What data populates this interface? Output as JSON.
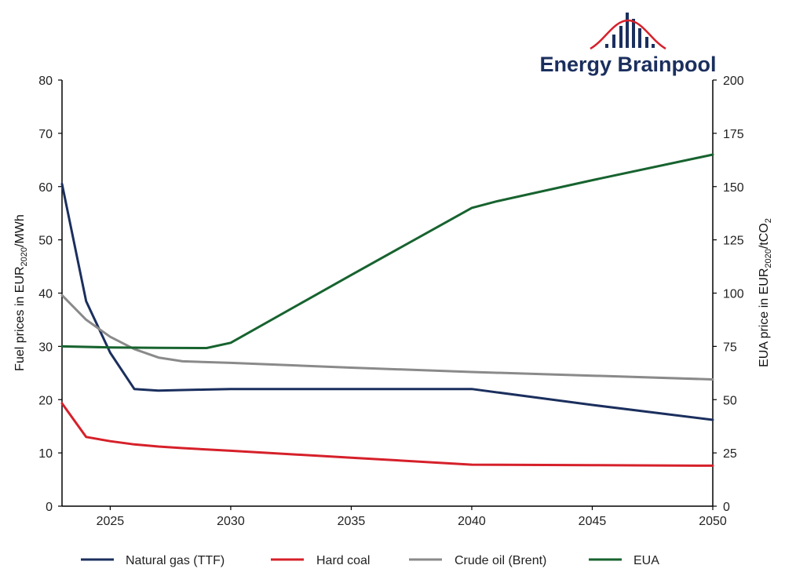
{
  "logo": {
    "text": "Energy Brainpool",
    "colors": {
      "text": "#1b2f5e",
      "arc": "#d6202a"
    }
  },
  "chart_data": {
    "type": "line",
    "xlim": [
      2023,
      2050
    ],
    "x_ticks": [
      2025,
      2030,
      2035,
      2040,
      2045,
      2050
    ],
    "y_left": {
      "label_prefix": "Fuel prices in EUR",
      "label_sub": "2020",
      "label_suffix": "/MWh",
      "lim": [
        0,
        80
      ],
      "ticks": [
        0,
        10,
        20,
        30,
        40,
        50,
        60,
        70,
        80
      ]
    },
    "y_right": {
      "label_prefix": "EUA price in EUR",
      "label_sub": "2020",
      "label_mid": "/tCO",
      "label_sub2": "2",
      "lim": [
        0,
        200
      ],
      "ticks": [
        0,
        25,
        50,
        75,
        100,
        125,
        150,
        175,
        200
      ]
    },
    "grid": false,
    "legend_position": "bottom",
    "series": [
      {
        "name": "Natural gas (TTF)",
        "axis": "left",
        "color": "#1b2f5e",
        "x": [
          2023,
          2024,
          2025,
          2026,
          2027,
          2028,
          2029,
          2030,
          2035,
          2040,
          2045,
          2050
        ],
        "y": [
          60.5,
          38.5,
          28.8,
          22.0,
          21.7,
          21.8,
          21.9,
          22.0,
          22.0,
          22.0,
          19.0,
          16.2
        ]
      },
      {
        "name": "Hard coal",
        "axis": "left",
        "color": "#d6202a",
        "x": [
          2023,
          2024,
          2025,
          2026,
          2027,
          2028,
          2030,
          2035,
          2040,
          2045,
          2050
        ],
        "y": [
          19.3,
          13.0,
          12.2,
          11.6,
          11.2,
          10.9,
          10.4,
          9.1,
          7.8,
          7.7,
          7.6
        ]
      },
      {
        "name": "Crude oil (Brent)",
        "axis": "left",
        "color": "#8a8a8a",
        "x": [
          2023,
          2024,
          2025,
          2026,
          2027,
          2028,
          2030,
          2035,
          2040,
          2045,
          2050
        ],
        "y": [
          39.6,
          35.0,
          31.8,
          29.5,
          27.9,
          27.2,
          26.9,
          26.0,
          25.2,
          24.5,
          23.8
        ]
      },
      {
        "name": "EUA",
        "axis": "right",
        "color": "#17632f",
        "x": [
          2023,
          2025,
          2027,
          2029,
          2030,
          2035,
          2040,
          2041,
          2045,
          2050
        ],
        "y": [
          75,
          74.5,
          74.3,
          74.2,
          76.7,
          108.5,
          140,
          143,
          153,
          165
        ]
      }
    ]
  }
}
